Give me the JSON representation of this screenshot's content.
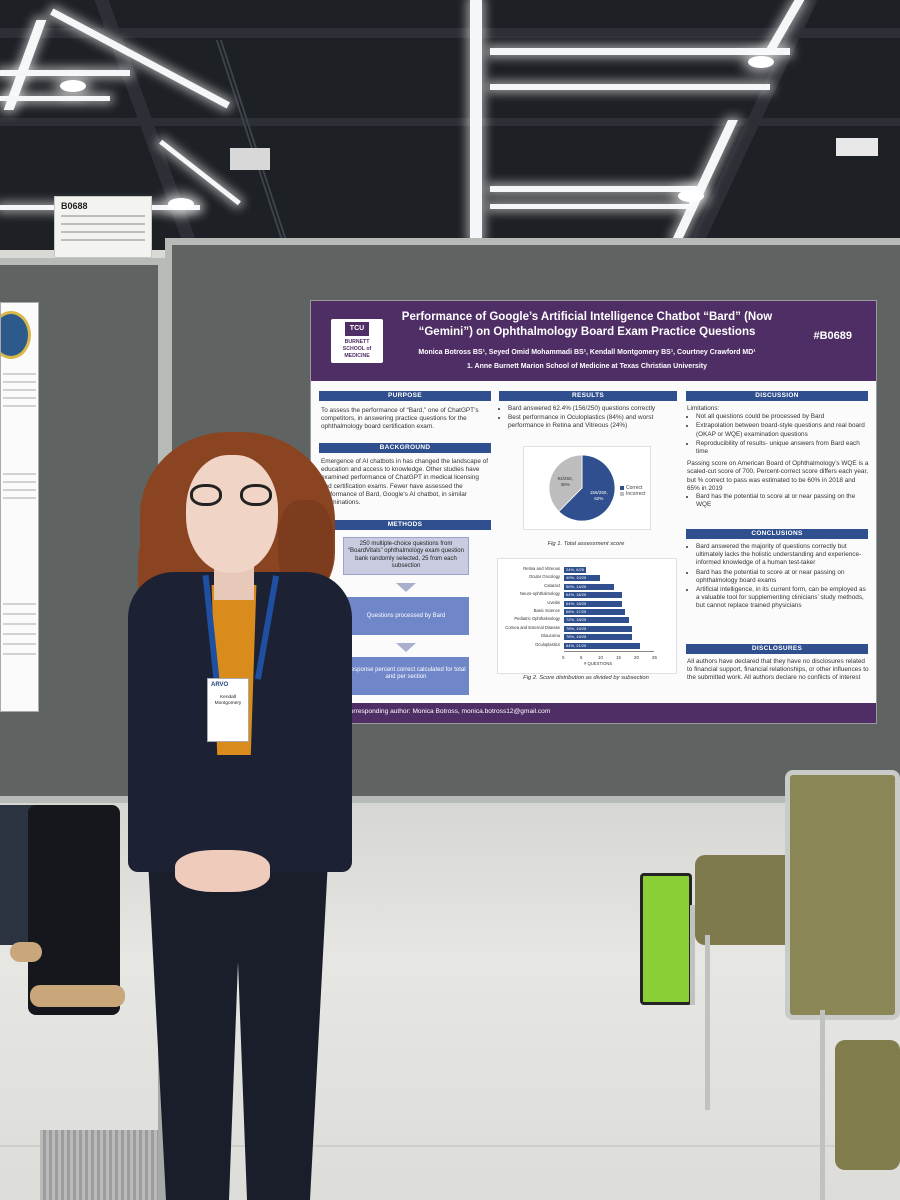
{
  "booth_sign": {
    "number": "B0688"
  },
  "poster": {
    "logo": {
      "tcu": "TCU",
      "school": "BURNETT\nSCHOOL of MEDICINE"
    },
    "title": "Performance of Google’s Artificial Intelligence Chatbot “Bard” (Now “Gemini”) on Ophthalmology Board Exam Practice Questions",
    "code": "#B0689",
    "authors": "Monica Botross BS¹, Seyed Omid Mohammadi BS¹, Kendall Montgomery BS¹, Courtney Crawford MD¹",
    "affiliation": "1. Anne Burnett Marion School of Medicine at Texas Christian University",
    "purpose": {
      "heading": "PURPOSE",
      "text": "To assess the performance of “Bard,” one of ChatGPT’s competitors, in answering practice questions for the ophthalmology board certification exam."
    },
    "background": {
      "heading": "BACKGROUND",
      "text": "Emergence of AI chatbots in has changed the landscape of education and access to knowledge. Other studies have examined performance of ChatGPT in medical licensing and certification exams. Fewer have assessed the performance of Bard, Google’s AI chatbot, in similar examinations."
    },
    "methods": {
      "heading": "METHODS",
      "step1": "250 multiple-choice questions from “BoardVitals” ophthalmology exam question bank randomly selected, 25 from each subsection",
      "step2": "Questions processed by Bard",
      "step3": "Response percent correct calculated for total and per section"
    },
    "results": {
      "heading": "RESULTS",
      "bullet1": "Bard answered 62.4% (156/250) questions correctly",
      "bullet2": "Best performance in Oculoplastics (84%) and worst performance in Retina and Vitreous (24%)",
      "fig1_caption": "Fig 1. Total assessment score",
      "fig2_caption": "Fig 2. Score distribution as divided by subsection"
    },
    "discussion": {
      "heading": "DISCUSSION",
      "limitations_label": "Limitations:",
      "lim1": "Not all questions could be processed by Bard",
      "lim2": "Extrapolation between board-style questions and real board (OKAP or WQE) examination questions",
      "lim3": "Reproducibility of results- unique answers from Bard each time",
      "passing": "Passing score on American Board of Ophthalmology’s WQE is a scaled-cut score of 700. Percent-correct score differs each year, but % correct to pass was estimated to be 60% in 2018 and 65% in 2019",
      "passing_sub": "Bard has the potential to score at or near passing on the WQE"
    },
    "conclusions": {
      "heading": "CONCLUSIONS",
      "c1": "Bard answered the majority of questions correctly but ultimately lacks the holistic understanding and experience-informed knowledge of a human test-taker",
      "c2": "Bard has the potential to score at or near passing on ophthalmology board exams",
      "c3": "Artificial intelligence, in its current form, can be employed as a valuable tool for supplementing clinicians’ study methods, but cannot replace trained physicians"
    },
    "disclosures": {
      "heading": "DISCLOSURES",
      "text": "All authors have declared that they have no disclosures related to financial support, financial relationships, or other influences to the submitted work. All authors declare no conflicts of interest"
    },
    "footer": "Corresponding author: Monica Botross, monica.botross12@gmail.com"
  },
  "chart_data": [
    {
      "type": "pie",
      "title": "",
      "slices": [
        {
          "label": "Correct",
          "value": 156,
          "display": "156/250, 62%",
          "color": "#2f4f8f"
        },
        {
          "label": "Incorrect",
          "value": 94,
          "display": "94/250, 38%",
          "color": "#bdbdbd"
        }
      ],
      "legend_placement": "right"
    },
    {
      "type": "bar",
      "orientation": "horizontal",
      "title": "",
      "xlabel": "# QUESTIONS",
      "xlim": [
        0,
        25
      ],
      "xticks": [
        "0",
        "5",
        "10",
        "15",
        "20",
        "25"
      ],
      "categories": [
        "Retina and Vitreous",
        "Ocular Oncology",
        "Cataract",
        "Neuro-ophthalmology",
        "Uveitis",
        "Basic Science",
        "Pediatric Ophthalmology",
        "Cornea and External Disease",
        "Glaucoma",
        "Oculoplastics"
      ],
      "values": [
        6,
        10,
        14,
        16,
        16,
        17,
        18,
        19,
        19,
        21
      ],
      "labels": [
        "24%, 6/25",
        "40%, 10/25",
        "56%, 14/25",
        "64%, 16/25",
        "64%, 16/25",
        "68%, 17/25",
        "72%, 18/25",
        "76%, 19/25",
        "76%, 19/25",
        "84%, 21/25"
      ],
      "color": "#2f4f8f"
    }
  ],
  "badge": {
    "org": "ARVO",
    "name": "Kendall\nMontgomery"
  }
}
